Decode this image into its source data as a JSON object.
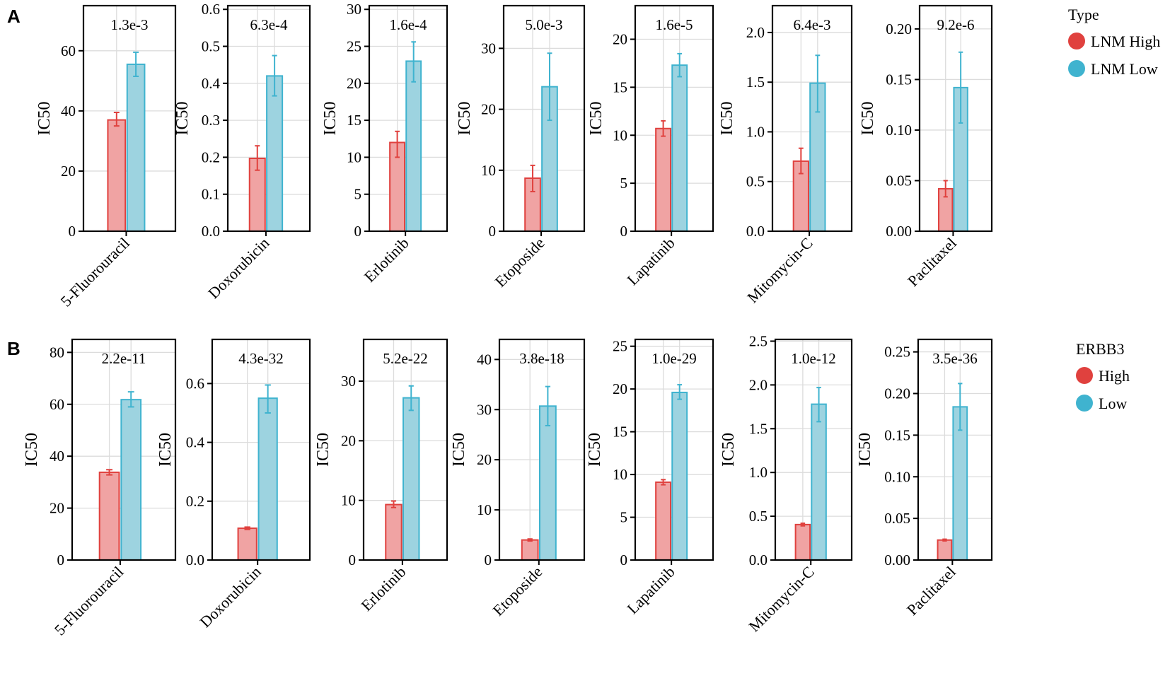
{
  "panels": [
    {
      "label": "A",
      "legend": {
        "title": "Type",
        "entries": [
          "LNM High",
          "LNM Low"
        ]
      },
      "colors": {
        "high_fill": "#f0a3a3",
        "high_stroke": "#e0413e",
        "low_fill": "#9dd3e0",
        "low_stroke": "#3fb3cf"
      },
      "charts": [
        {
          "type": "bar",
          "category": "5-Fluorouracil",
          "pvalue": "1.3e-3",
          "ylabel": "IC50",
          "ylim": [
            0,
            75
          ],
          "ticks": [
            0,
            20,
            40,
            60
          ],
          "tick_labels": [
            "0",
            "20",
            "40",
            "60"
          ],
          "series": [
            {
              "name": "LNM High",
              "value": 37,
              "err_low": 35,
              "err_high": 39.5
            },
            {
              "name": "LNM Low",
              "value": 55.5,
              "err_low": 51.5,
              "err_high": 59.5
            }
          ]
        },
        {
          "type": "bar",
          "category": "Doxorubicin",
          "pvalue": "6.3e-4",
          "ylabel": "IC50",
          "ylim": [
            0,
            0.61
          ],
          "ticks": [
            0,
            0.1,
            0.2,
            0.3,
            0.4,
            0.5,
            0.6
          ],
          "tick_labels": [
            "0.0",
            "0.1",
            "0.2",
            "0.3",
            "0.4",
            "0.5",
            "0.6"
          ],
          "series": [
            {
              "name": "LNM High",
              "value": 0.197,
              "err_low": 0.165,
              "err_high": 0.231
            },
            {
              "name": "LNM Low",
              "value": 0.42,
              "err_low": 0.366,
              "err_high": 0.475
            }
          ]
        },
        {
          "type": "bar",
          "category": "Erlotinib",
          "pvalue": "1.6e-4",
          "ylabel": "IC50",
          "ylim": [
            0,
            30.5
          ],
          "ticks": [
            0,
            5,
            10,
            15,
            20,
            25,
            30
          ],
          "tick_labels": [
            "0",
            "5",
            "10",
            "15",
            "20",
            "25",
            "30"
          ],
          "series": [
            {
              "name": "LNM High",
              "value": 12,
              "err_low": 10,
              "err_high": 13.5
            },
            {
              "name": "LNM Low",
              "value": 23,
              "err_low": 20.2,
              "err_high": 25.6
            }
          ]
        },
        {
          "type": "bar",
          "category": "Etoposide",
          "pvalue": "5.0e-3",
          "ylabel": "IC50",
          "ylim": [
            0,
            37
          ],
          "ticks": [
            0,
            10,
            20,
            30
          ],
          "tick_labels": [
            "0",
            "10",
            "20",
            "30"
          ],
          "series": [
            {
              "name": "LNM High",
              "value": 8.7,
              "err_low": 6.5,
              "err_high": 10.8
            },
            {
              "name": "LNM Low",
              "value": 23.7,
              "err_low": 18.2,
              "err_high": 29.2
            }
          ]
        },
        {
          "type": "bar",
          "category": "Lapatinib",
          "pvalue": "1.6e-5",
          "ylabel": "IC50",
          "ylim": [
            0,
            23.5
          ],
          "ticks": [
            0,
            5,
            10,
            15,
            20
          ],
          "tick_labels": [
            "0",
            "5",
            "10",
            "15",
            "20"
          ],
          "series": [
            {
              "name": "LNM High",
              "value": 10.7,
              "err_low": 9.9,
              "err_high": 11.5
            },
            {
              "name": "LNM Low",
              "value": 17.3,
              "err_low": 16.1,
              "err_high": 18.5
            }
          ]
        },
        {
          "type": "bar",
          "category": "Mitomycin-C",
          "pvalue": "6.4e-3",
          "ylabel": "IC50",
          "ylim": [
            0,
            2.27
          ],
          "ticks": [
            0,
            0.5,
            1,
            1.5,
            2
          ],
          "tick_labels": [
            "0.0",
            "0.5",
            "1.0",
            "1.5",
            "2.0"
          ],
          "series": [
            {
              "name": "LNM High",
              "value": 0.705,
              "err_low": 0.58,
              "err_high": 0.835
            },
            {
              "name": "LNM Low",
              "value": 1.49,
              "err_low": 1.2,
              "err_high": 1.77
            }
          ]
        },
        {
          "type": "bar",
          "category": "Paclitaxel",
          "pvalue": "9.2e-6",
          "ylabel": "IC50",
          "ylim": [
            0,
            0.223
          ],
          "ticks": [
            0,
            0.05,
            0.1,
            0.15,
            0.2
          ],
          "tick_labels": [
            "0.00",
            "0.05",
            "0.10",
            "0.15",
            "0.20"
          ],
          "series": [
            {
              "name": "LNM High",
              "value": 0.042,
              "err_low": 0.034,
              "err_high": 0.05
            },
            {
              "name": "LNM Low",
              "value": 0.142,
              "err_low": 0.107,
              "err_high": 0.177
            }
          ]
        }
      ]
    },
    {
      "label": "B",
      "legend": {
        "title": "ERBB3",
        "entries": [
          "High",
          "Low"
        ]
      },
      "colors": {
        "high_fill": "#f0a3a3",
        "high_stroke": "#e0413e",
        "low_fill": "#9dd3e0",
        "low_stroke": "#3fb3cf"
      },
      "charts": [
        {
          "type": "bar",
          "category": "5-Fluorouracil",
          "pvalue": "2.2e-11",
          "ylabel": "IC50",
          "ylim": [
            0,
            85
          ],
          "ticks": [
            0,
            20,
            40,
            60,
            80
          ],
          "tick_labels": [
            "0",
            "20",
            "40",
            "60",
            "80"
          ],
          "series": [
            {
              "name": "High",
              "value": 33.8,
              "err_low": 32.8,
              "err_high": 34.8
            },
            {
              "name": "Low",
              "value": 61.8,
              "err_low": 59,
              "err_high": 64.8
            }
          ]
        },
        {
          "type": "bar",
          "category": "Doxorubicin",
          "pvalue": "4.3e-32",
          "ylabel": "IC50",
          "ylim": [
            0,
            0.75
          ],
          "ticks": [
            0,
            0.2,
            0.4,
            0.6
          ],
          "tick_labels": [
            "0.0",
            "0.2",
            "0.4",
            "0.6"
          ],
          "series": [
            {
              "name": "High",
              "value": 0.108,
              "err_low": 0.104,
              "err_high": 0.112
            },
            {
              "name": "Low",
              "value": 0.55,
              "err_low": 0.5,
              "err_high": 0.595
            }
          ]
        },
        {
          "type": "bar",
          "category": "Erlotinib",
          "pvalue": "5.2e-22",
          "ylabel": "IC50",
          "ylim": [
            0,
            37
          ],
          "ticks": [
            0,
            10,
            20,
            30
          ],
          "tick_labels": [
            "0",
            "10",
            "20",
            "30"
          ],
          "series": [
            {
              "name": "High",
              "value": 9.3,
              "err_low": 8.8,
              "err_high": 9.9
            },
            {
              "name": "Low",
              "value": 27.2,
              "err_low": 25.1,
              "err_high": 29.2
            }
          ]
        },
        {
          "type": "bar",
          "category": "Etoposide",
          "pvalue": "3.8e-18",
          "ylabel": "IC50",
          "ylim": [
            0,
            44
          ],
          "ticks": [
            0,
            10,
            20,
            30,
            40
          ],
          "tick_labels": [
            "0",
            "10",
            "20",
            "30",
            "40"
          ],
          "series": [
            {
              "name": "High",
              "value": 4,
              "err_low": 3.8,
              "err_high": 4.2
            },
            {
              "name": "Low",
              "value": 30.7,
              "err_low": 26.8,
              "err_high": 34.6
            }
          ]
        },
        {
          "type": "bar",
          "category": "Lapatinib",
          "pvalue": "1.0e-29",
          "ylabel": "IC50",
          "ylim": [
            0,
            25.8
          ],
          "ticks": [
            0,
            5,
            10,
            15,
            20,
            25
          ],
          "tick_labels": [
            "0",
            "5",
            "10",
            "15",
            "20",
            "25"
          ],
          "series": [
            {
              "name": "High",
              "value": 9.1,
              "err_low": 8.8,
              "err_high": 9.4
            },
            {
              "name": "Low",
              "value": 19.6,
              "err_low": 18.8,
              "err_high": 20.5
            }
          ]
        },
        {
          "type": "bar",
          "category": "Mitomycin-C",
          "pvalue": "1.0e-12",
          "ylabel": "IC50",
          "ylim": [
            0,
            2.52
          ],
          "ticks": [
            0,
            0.5,
            1,
            1.5,
            2,
            2.5
          ],
          "tick_labels": [
            "0.0",
            "0.5",
            "1.0",
            "1.5",
            "2.0",
            "2.5"
          ],
          "series": [
            {
              "name": "High",
              "value": 0.405,
              "err_low": 0.39,
              "err_high": 0.42
            },
            {
              "name": "Low",
              "value": 1.78,
              "err_low": 1.58,
              "err_high": 1.97
            }
          ]
        },
        {
          "type": "bar",
          "category": "Paclitaxel",
          "pvalue": "3.5e-36",
          "ylabel": "IC50",
          "ylim": [
            0,
            0.265
          ],
          "ticks": [
            0,
            0.05,
            0.1,
            0.15,
            0.2,
            0.25
          ],
          "tick_labels": [
            "0.00",
            "0.05",
            "0.10",
            "0.15",
            "0.20",
            "0.25"
          ],
          "series": [
            {
              "name": "High",
              "value": 0.024,
              "err_low": 0.023,
              "err_high": 0.025
            },
            {
              "name": "Low",
              "value": 0.184,
              "err_low": 0.156,
              "err_high": 0.212
            }
          ]
        }
      ]
    }
  ]
}
